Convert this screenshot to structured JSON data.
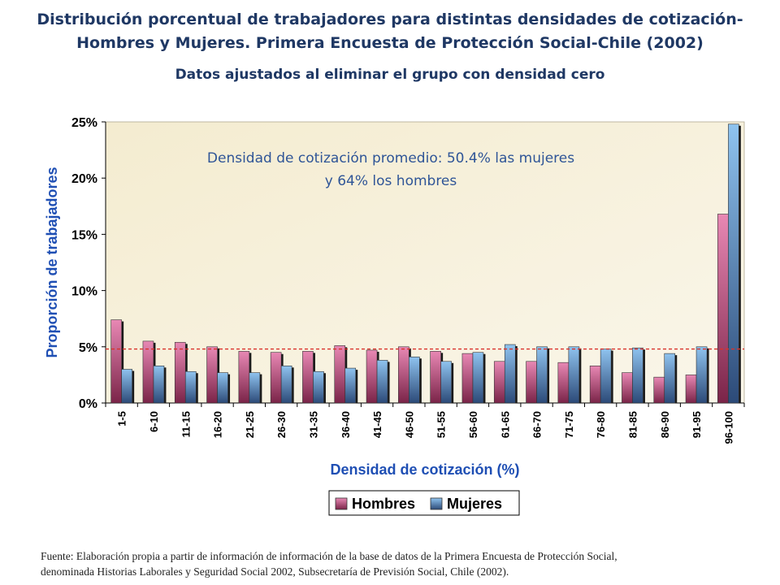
{
  "header": {
    "title_line1": "Distribución porcentual de trabajadores para distintas densidades de cotización-",
    "title_line2": "Hombres y Mujeres. Primera Encuesta de Protección Social-Chile (2002)",
    "subtitle": "Datos ajustados al eliminar el grupo con densidad cero"
  },
  "chart_data": {
    "type": "bar",
    "xlabel": "Densidad de cotización (%)",
    "ylabel": "Proporción de trabajadores",
    "ylim": [
      0,
      25
    ],
    "yticks": [
      "0%",
      "5%",
      "10%",
      "15%",
      "20%",
      "25%"
    ],
    "categories": [
      "1-5",
      "6-10",
      "11-15",
      "16-20",
      "21-25",
      "26-30",
      "31-35",
      "36-40",
      "41-45",
      "46-50",
      "51-55",
      "56-60",
      "61-65",
      "66-70",
      "71-75",
      "76-80",
      "81-85",
      "86-90",
      "91-95",
      "96-100"
    ],
    "series": [
      {
        "name": "Hombres",
        "color": "#e888b4",
        "values": [
          7.4,
          5.5,
          5.4,
          5.0,
          4.6,
          4.5,
          4.6,
          5.1,
          4.7,
          5.0,
          4.6,
          4.4,
          3.7,
          3.7,
          3.6,
          3.3,
          2.7,
          2.3,
          2.5,
          16.8
        ]
      },
      {
        "name": "Mujeres",
        "color": "#8fc3ef",
        "values": [
          3.0,
          3.3,
          2.8,
          2.7,
          2.7,
          3.3,
          2.8,
          3.1,
          3.8,
          4.1,
          3.7,
          4.5,
          5.2,
          5.0,
          5.0,
          4.8,
          4.9,
          4.4,
          5.0,
          24.8
        ]
      }
    ],
    "reference_line": {
      "value": 4.8,
      "color": "#d9312b",
      "style": "dashed"
    },
    "annotation_line1": "Densidad de cotización promedio: 50.4% las mujeres",
    "annotation_line2": "y 64% los hombres",
    "grid": false,
    "legend_position": "bottom-center"
  },
  "footer": {
    "line1": "Fuente: Elaboración propia a partir de información de información de la base de datos de la Primera Encuesta de Protección Social,",
    "line2": "denominada Historias Laborales y Seguridad Social 2002, Subsecretaría de Previsión Social, Chile (2002)."
  }
}
